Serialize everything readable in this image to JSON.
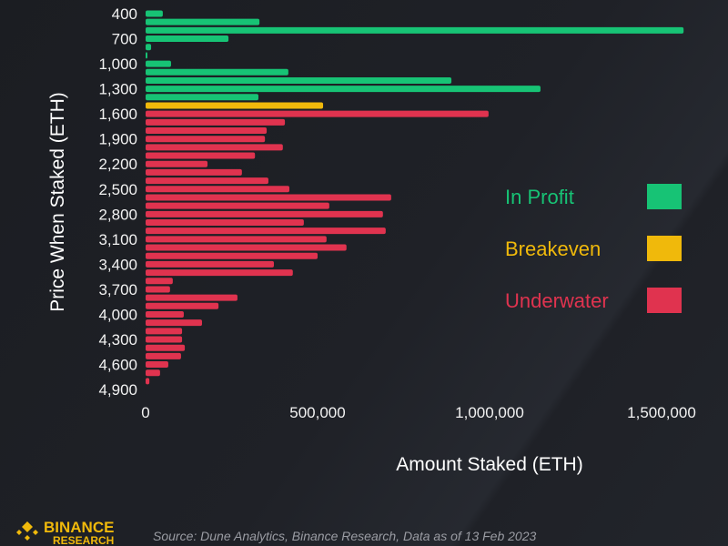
{
  "chart_data": {
    "type": "bar",
    "orientation": "horizontal",
    "title": "",
    "xlabel": "Amount Staked (ETH)",
    "ylabel": "Price When Staked (ETH)",
    "xlim": [
      0,
      1600000
    ],
    "xticks": [
      0,
      500000,
      1000000,
      1500000
    ],
    "xtick_labels": [
      "0",
      "500,000",
      "1,000,000",
      "1,500,000"
    ],
    "ytick_labels": [
      "400",
      "700",
      "1,000",
      "1,300",
      "1,600",
      "1,900",
      "2,200",
      "2,500",
      "2,800",
      "3,100",
      "3,400",
      "3,700",
      "4,000",
      "4,300",
      "4,600",
      "4,900"
    ],
    "grid": false,
    "categories": [
      400,
      500,
      600,
      700,
      800,
      900,
      1000,
      1100,
      1200,
      1300,
      1400,
      1500,
      1600,
      1700,
      1800,
      1900,
      2000,
      2100,
      2200,
      2300,
      2400,
      2500,
      2600,
      2700,
      2800,
      2900,
      3000,
      3100,
      3200,
      3300,
      3400,
      3500,
      3600,
      3700,
      3800,
      3900,
      4000,
      4100,
      4200,
      4300,
      4400,
      4500,
      4600,
      4700,
      4800
    ],
    "values": [
      50000,
      331000,
      1564000,
      241000,
      16000,
      3000,
      74000,
      415000,
      889000,
      1148000,
      328000,
      516000,
      997000,
      405000,
      352000,
      347000,
      399000,
      318000,
      180000,
      280000,
      357000,
      418000,
      714000,
      534000,
      690000,
      460000,
      698000,
      526000,
      584000,
      500000,
      373000,
      428000,
      79000,
      71000,
      267000,
      212000,
      111000,
      164000,
      106000,
      106000,
      114000,
      103000,
      66000,
      42000,
      11000
    ],
    "status": [
      "profit",
      "profit",
      "profit",
      "profit",
      "profit",
      "profit",
      "profit",
      "profit",
      "profit",
      "profit",
      "profit",
      "breakeven",
      "underwater",
      "underwater",
      "underwater",
      "underwater",
      "underwater",
      "underwater",
      "underwater",
      "underwater",
      "underwater",
      "underwater",
      "underwater",
      "underwater",
      "underwater",
      "underwater",
      "underwater",
      "underwater",
      "underwater",
      "underwater",
      "underwater",
      "underwater",
      "underwater",
      "underwater",
      "underwater",
      "underwater",
      "underwater",
      "underwater",
      "underwater",
      "underwater",
      "underwater",
      "underwater",
      "underwater",
      "underwater",
      "underwater"
    ],
    "legend": [
      {
        "key": "profit",
        "label": "In Profit",
        "color": "#17c375"
      },
      {
        "key": "breakeven",
        "label": "Breakeven",
        "color": "#f0b90b"
      },
      {
        "key": "underwater",
        "label": "Underwater",
        "color": "#e0334f"
      }
    ],
    "legend_position": "right"
  },
  "footer": {
    "logo_text": "BINANCE",
    "logo_subtext": "RESEARCH",
    "source": "Source: Dune Analytics, Binance Research, Data as of 13 Feb 2023"
  }
}
